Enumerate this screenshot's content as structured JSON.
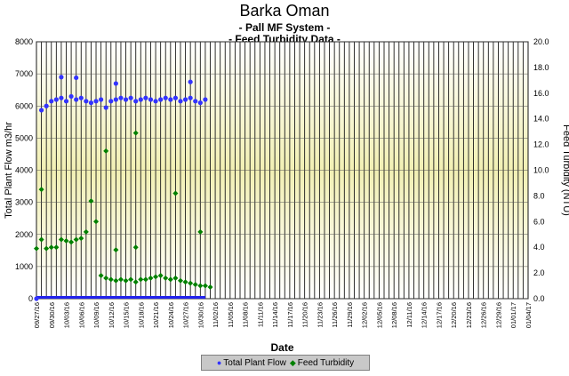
{
  "chart_data": {
    "type": "scatter",
    "title": "Barka Oman",
    "subtitles": [
      "- Pall MF System -",
      "- Feed Turbidity Data -"
    ],
    "xlabel": "Date",
    "ylabel_left": "Total Plant Flow m3/hr",
    "ylabel_right": "Feed Turbidity (NTU)",
    "ylim_left": [
      0,
      8000
    ],
    "ylim_right": [
      0,
      20
    ],
    "yticks_left": [
      "0",
      "1000",
      "2000",
      "3000",
      "4000",
      "5000",
      "6000",
      "7000",
      "8000"
    ],
    "yticks_right": [
      "0.0",
      "2.0",
      "4.0",
      "6.0",
      "8.0",
      "10.0",
      "12.0",
      "14.0",
      "16.0",
      "18.0",
      "20.0"
    ],
    "x_tick_labels": [
      "09/27/16",
      "09/30/16",
      "10/03/16",
      "10/06/16",
      "10/09/16",
      "10/12/16",
      "10/15/16",
      "10/18/16",
      "10/21/16",
      "10/24/16",
      "10/27/16",
      "10/30/16",
      "11/02/16",
      "11/05/16",
      "11/08/16",
      "11/11/16",
      "11/14/16",
      "11/17/16",
      "11/20/16",
      "11/23/16",
      "11/26/16",
      "11/29/16",
      "12/02/16",
      "12/05/16",
      "12/08/16",
      "12/11/16",
      "12/14/16",
      "12/17/16",
      "12/20/16",
      "12/23/16",
      "12/26/16",
      "12/29/16",
      "01/01/17",
      "01/04/17"
    ],
    "x_range_days": [
      "09/27/16",
      "01/04/17"
    ],
    "grid": true,
    "legend_position": "bottom",
    "series": [
      {
        "name": "Total Plant Flow",
        "axis": "left",
        "color": "#3333ff",
        "marker": "circle",
        "points": [
          [
            "09/27/16",
            0
          ],
          [
            "09/28/16",
            5870
          ],
          [
            "09/29/16",
            6000
          ],
          [
            "09/30/16",
            6150
          ],
          [
            "10/01/16",
            6200
          ],
          [
            "10/02/16",
            6250
          ],
          [
            "10/03/16",
            6150
          ],
          [
            "10/04/16",
            6300
          ],
          [
            "10/05/16",
            6200
          ],
          [
            "10/06/16",
            6250
          ],
          [
            "10/07/16",
            6150
          ],
          [
            "10/08/16",
            6100
          ],
          [
            "10/09/16",
            6150
          ],
          [
            "10/10/16",
            6200
          ],
          [
            "10/11/16",
            5950
          ],
          [
            "10/12/16",
            6150
          ],
          [
            "10/13/16",
            6200
          ],
          [
            "10/14/16",
            6250
          ],
          [
            "10/15/16",
            6200
          ],
          [
            "10/16/16",
            6250
          ],
          [
            "10/17/16",
            6150
          ],
          [
            "10/18/16",
            6200
          ],
          [
            "10/19/16",
            6250
          ],
          [
            "10/20/16",
            6200
          ],
          [
            "10/21/16",
            6150
          ],
          [
            "10/22/16",
            6200
          ],
          [
            "10/23/16",
            6250
          ],
          [
            "10/24/16",
            6200
          ],
          [
            "10/25/16",
            6250
          ],
          [
            "10/26/16",
            6150
          ],
          [
            "10/27/16",
            6200
          ],
          [
            "10/28/16",
            6250
          ],
          [
            "10/29/16",
            6150
          ],
          [
            "10/30/16",
            6100
          ],
          [
            "10/31/16",
            6200
          ],
          [
            "10/02/16",
            6900
          ],
          [
            "10/05/16",
            6880
          ],
          [
            "10/13/16",
            6700
          ],
          [
            "10/28/16",
            6750
          ]
        ]
      },
      {
        "name": "Feed Turbidity",
        "axis": "right",
        "color": "#008000",
        "marker": "diamond",
        "points": [
          [
            "09/27/16",
            3.9
          ],
          [
            "09/28/16",
            4.6
          ],
          [
            "09/28/16",
            8.5
          ],
          [
            "09/29/16",
            3.9
          ],
          [
            "09/30/16",
            4.0
          ],
          [
            "10/01/16",
            4.0
          ],
          [
            "10/02/16",
            4.6
          ],
          [
            "10/03/16",
            4.5
          ],
          [
            "10/04/16",
            4.4
          ],
          [
            "10/05/16",
            4.6
          ],
          [
            "10/06/16",
            4.7
          ],
          [
            "10/07/16",
            5.2
          ],
          [
            "10/08/16",
            7.6
          ],
          [
            "10/09/16",
            6.0
          ],
          [
            "10/10/16",
            1.8
          ],
          [
            "10/11/16",
            1.6
          ],
          [
            "10/11/16",
            11.5
          ],
          [
            "10/12/16",
            1.5
          ],
          [
            "10/13/16",
            1.4
          ],
          [
            "10/13/16",
            3.8
          ],
          [
            "10/14/16",
            1.5
          ],
          [
            "10/15/16",
            1.4
          ],
          [
            "10/16/16",
            1.5
          ],
          [
            "10/17/16",
            1.3
          ],
          [
            "10/17/16",
            12.9
          ],
          [
            "10/17/16",
            4.0
          ],
          [
            "10/18/16",
            1.5
          ],
          [
            "10/19/16",
            1.5
          ],
          [
            "10/20/16",
            1.6
          ],
          [
            "10/21/16",
            1.7
          ],
          [
            "10/22/16",
            1.8
          ],
          [
            "10/23/16",
            1.6
          ],
          [
            "10/24/16",
            1.5
          ],
          [
            "10/25/16",
            1.6
          ],
          [
            "10/25/16",
            8.2
          ],
          [
            "10/26/16",
            1.4
          ],
          [
            "10/27/16",
            1.3
          ],
          [
            "10/28/16",
            1.2
          ],
          [
            "10/29/16",
            1.1
          ],
          [
            "10/30/16",
            1.0
          ],
          [
            "10/30/16",
            5.2
          ],
          [
            "10/31/16",
            1.0
          ],
          [
            "11/01/16",
            0.9
          ]
        ]
      }
    ]
  },
  "legend": {
    "items": [
      {
        "label": "Total Plant Flow",
        "color": "#3333ff",
        "symbol": "●"
      },
      {
        "label": "Feed Turbidity",
        "color": "#008000",
        "symbol": "◆"
      }
    ]
  }
}
